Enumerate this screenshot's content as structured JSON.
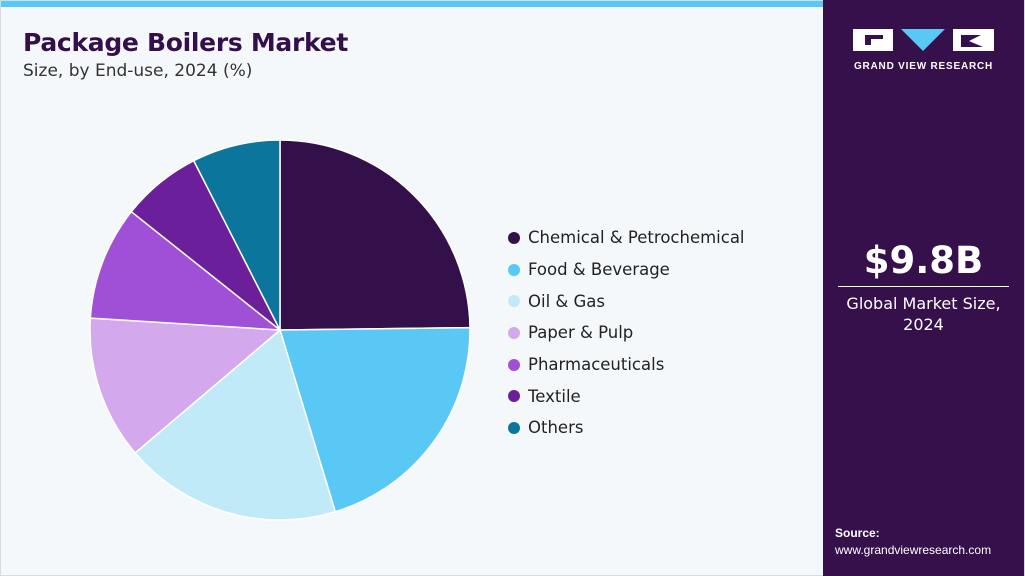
{
  "header": {
    "title": "Package Boilers Market",
    "subtitle": "Size, by End-use, 2024 (%)"
  },
  "colors": {
    "accent": "#5ac8f5",
    "sidebar_bg": "#35104a",
    "title": "#34104a"
  },
  "chart_data": {
    "type": "pie",
    "title": "Package Boilers Market",
    "subtitle": "Size, by End-use, 2024 (%)",
    "legend_position": "right",
    "slices": [
      {
        "label": "Chemical & Petrochemical",
        "value": 24.8,
        "color": "#34104a"
      },
      {
        "label": "Food & Beverage",
        "value": 20.5,
        "color": "#5ac8f5"
      },
      {
        "label": "Oil & Gas",
        "value": 18.5,
        "color": "#c0eaf8"
      },
      {
        "label": "Paper & Pulp",
        "value": 12.2,
        "color": "#d4a8ec"
      },
      {
        "label": "Pharmaceuticals",
        "value": 9.7,
        "color": "#a04fd7"
      },
      {
        "label": "Textile",
        "value": 6.8,
        "color": "#6c1f9a"
      },
      {
        "label": "Others",
        "value": 7.5,
        "color": "#0c759c"
      }
    ]
  },
  "sidebar": {
    "logo_text": "GRAND VIEW RESEARCH",
    "market_value": "$9.8B",
    "market_label_line1": "Global Market Size,",
    "market_label_line2": "2024",
    "source_label": "Source:",
    "source_url": "www.grandviewresearch.com"
  }
}
